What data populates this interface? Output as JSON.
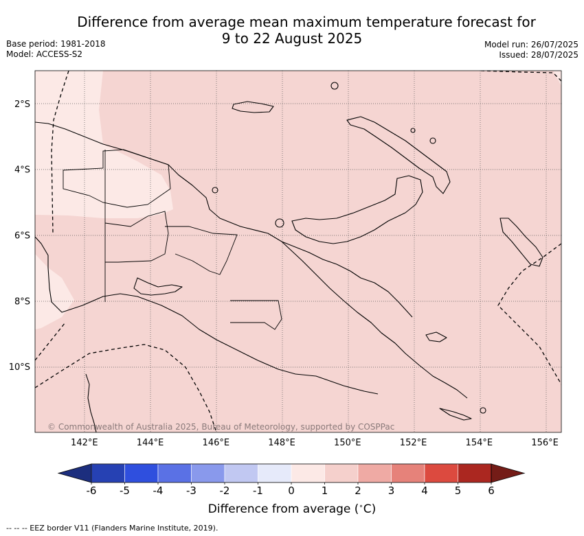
{
  "title": {
    "line1": "Difference from average mean maximum temperature forecast for",
    "line2": "9 to 22 August 2025"
  },
  "meta_left": {
    "base_period": "Base period: 1981-2018",
    "model": "Model: ACCESS-S2"
  },
  "meta_right": {
    "model_run": "Model run: 26/07/2025",
    "issued": "Issued: 28/07/2025"
  },
  "map": {
    "lon_range": [
      140.5,
      156.5
    ],
    "lat_range": [
      -12.0,
      -1.0
    ],
    "lon_ticks": [
      "142°E",
      "144°E",
      "146°E",
      "148°E",
      "150°E",
      "152°E",
      "154°E",
      "156°E"
    ],
    "lat_ticks": [
      "2°S",
      "4°S",
      "6°S",
      "8°S",
      "10°S"
    ],
    "grid": true,
    "fill_color_main": "#f5d5d2",
    "fill_color_light": "#fce9e6"
  },
  "copyright": "© Commonwealth of Australia 2025, Bureau of Meteorology, supported by COSPPac",
  "colorbar": {
    "label_prefix": "Difference from average (",
    "label_unit": "C",
    "label_suffix": ")",
    "tick_labels": [
      "-6",
      "-5",
      "-4",
      "-3",
      "-2",
      "-1",
      "0",
      "1",
      "2",
      "3",
      "4",
      "5",
      "6"
    ],
    "colors": [
      "#2641b3",
      "#2f4fde",
      "#5a71e5",
      "#8999ec",
      "#c1c8f2",
      "#e6eafa",
      "#fce9e6",
      "#f5d0cc",
      "#efaaa4",
      "#e6827a",
      "#dc4a3f",
      "#ab2720"
    ],
    "under_color": "#1c2e7e",
    "over_color": "#741c17"
  },
  "footnote": "-- -- -- EEZ border V11 (Flanders Marine Institute, 2019)."
}
